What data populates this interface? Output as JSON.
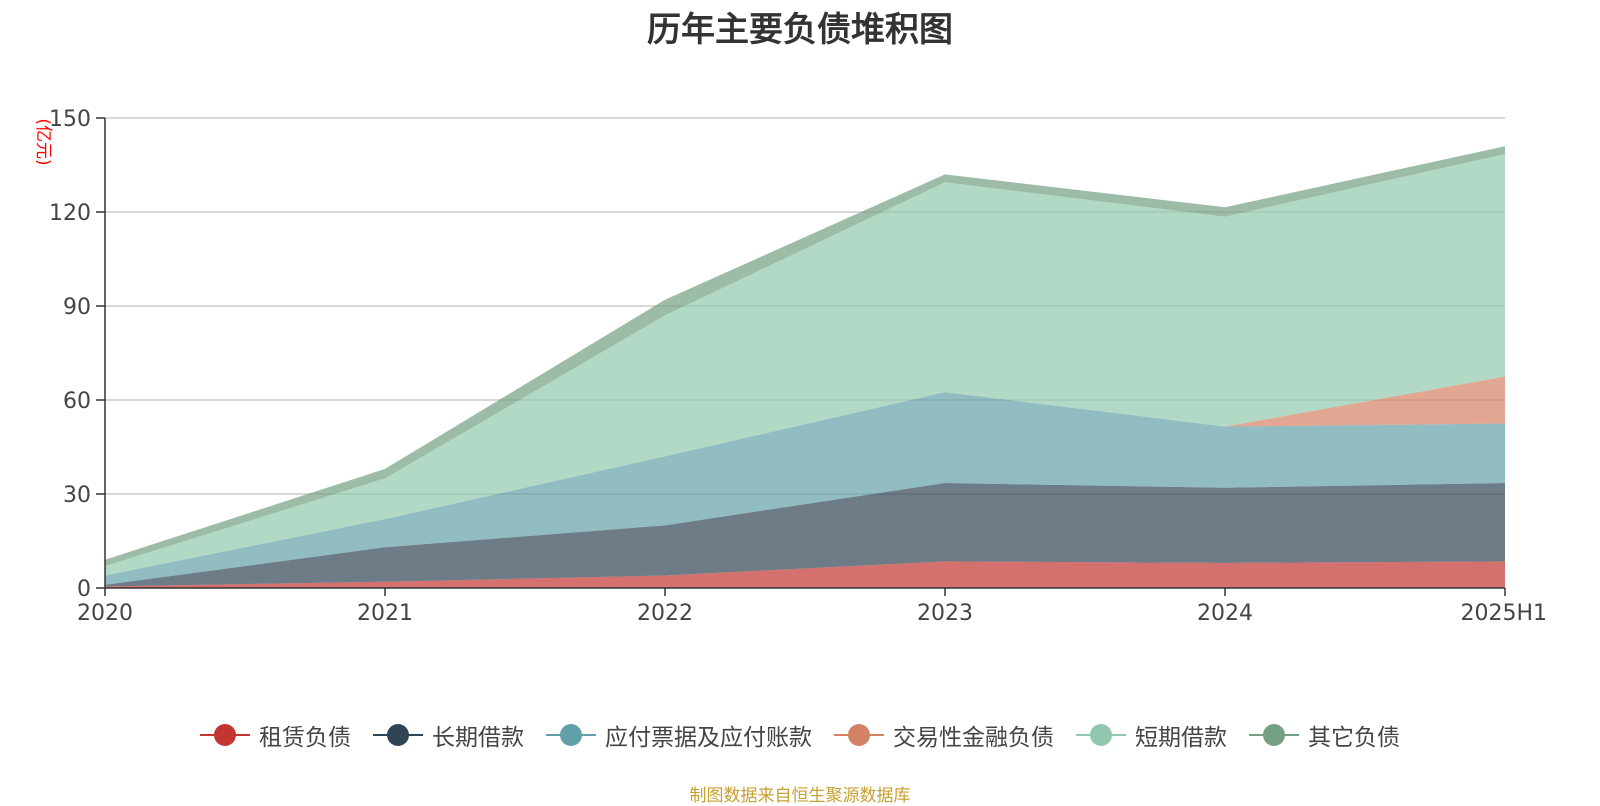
{
  "chart_data": {
    "type": "area",
    "stacked": true,
    "title": "历年主要负债堆积图",
    "unit_label": "(亿元)",
    "categories": [
      "2020",
      "2021",
      "2022",
      "2023",
      "2024",
      "2025H1"
    ],
    "ylim": [
      0,
      150
    ],
    "yticks": [
      0,
      30,
      60,
      90,
      120,
      150
    ],
    "grid": true,
    "legend_position": "bottom",
    "series": [
      {
        "name": "租赁负债",
        "color": "#c23531",
        "values": [
          0.5,
          2,
          4,
          8.5,
          8,
          8.5
        ]
      },
      {
        "name": "长期借款",
        "color": "#2f4554",
        "values": [
          0.5,
          11,
          16,
          25,
          24,
          25
        ]
      },
      {
        "name": "应付票据及应付账款",
        "color": "#61a0a8",
        "values": [
          3,
          9,
          22,
          29,
          19.5,
          19
        ]
      },
      {
        "name": "交易性金融负债",
        "color": "#d48265",
        "values": [
          0,
          0,
          0,
          0,
          0,
          15
        ]
      },
      {
        "name": "短期借款",
        "color": "#91c7ae",
        "values": [
          3,
          13,
          45,
          67,
          67,
          71
        ]
      },
      {
        "name": "其它负债",
        "color": "#749f83",
        "values": [
          2,
          3,
          5,
          2.5,
          3,
          2.5
        ]
      }
    ]
  },
  "footer": {
    "source_note": "制图数据来自恒生聚源数据库"
  }
}
